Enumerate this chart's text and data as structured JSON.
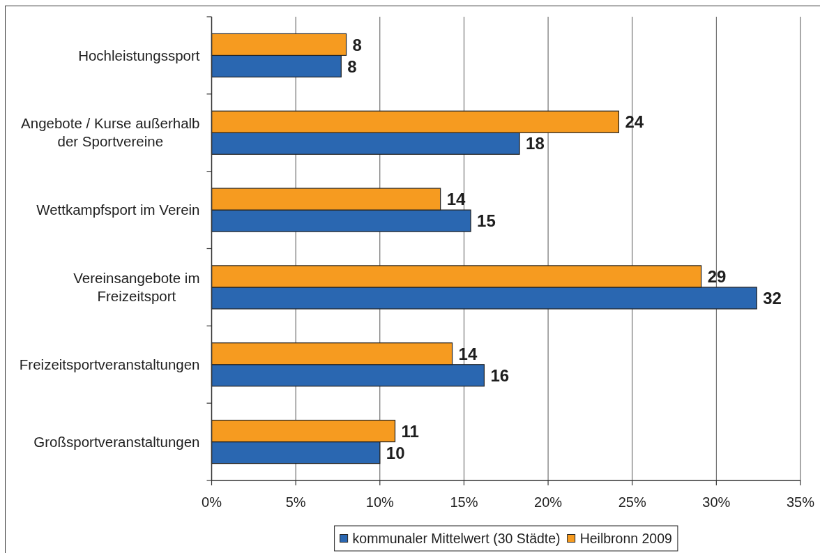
{
  "chart_data": {
    "type": "bar",
    "orientation": "horizontal",
    "categories": [
      "Hochleistungssport",
      "Angebote / Kurse außerhalb der Sportvereine",
      "Wettkampfsport im Verein",
      "Vereinsangebote im Freizeitsport",
      "Freizeitsportveranstaltungen",
      "Großsportveranstaltungen"
    ],
    "series": [
      {
        "name": "kommunaler Mittelwert (30 Städte)",
        "color": "#2a67b1",
        "values": [
          7.7,
          18.3,
          15.4,
          32.4,
          16.2,
          10.0
        ],
        "value_labels": [
          "8",
          "18",
          "15",
          "32",
          "16",
          "10"
        ]
      },
      {
        "name": "Heilbronn 2009",
        "color": "#f69b20",
        "values": [
          8.0,
          24.2,
          13.6,
          29.1,
          14.3,
          10.9
        ],
        "value_labels": [
          "8",
          "24",
          "14",
          "29",
          "14",
          "11"
        ]
      }
    ],
    "xlim": [
      0,
      35
    ],
    "xticks": [
      {
        "value": 0,
        "label": "0%"
      },
      {
        "value": 5,
        "label": "5%"
      },
      {
        "value": 10,
        "label": "10%"
      },
      {
        "value": 15,
        "label": "15%"
      },
      {
        "value": 20,
        "label": "20%"
      },
      {
        "value": 25,
        "label": "25%"
      },
      {
        "value": 30,
        "label": "30%"
      },
      {
        "value": 35,
        "label": "35%"
      }
    ],
    "grid": "x",
    "legend": "bottom"
  }
}
